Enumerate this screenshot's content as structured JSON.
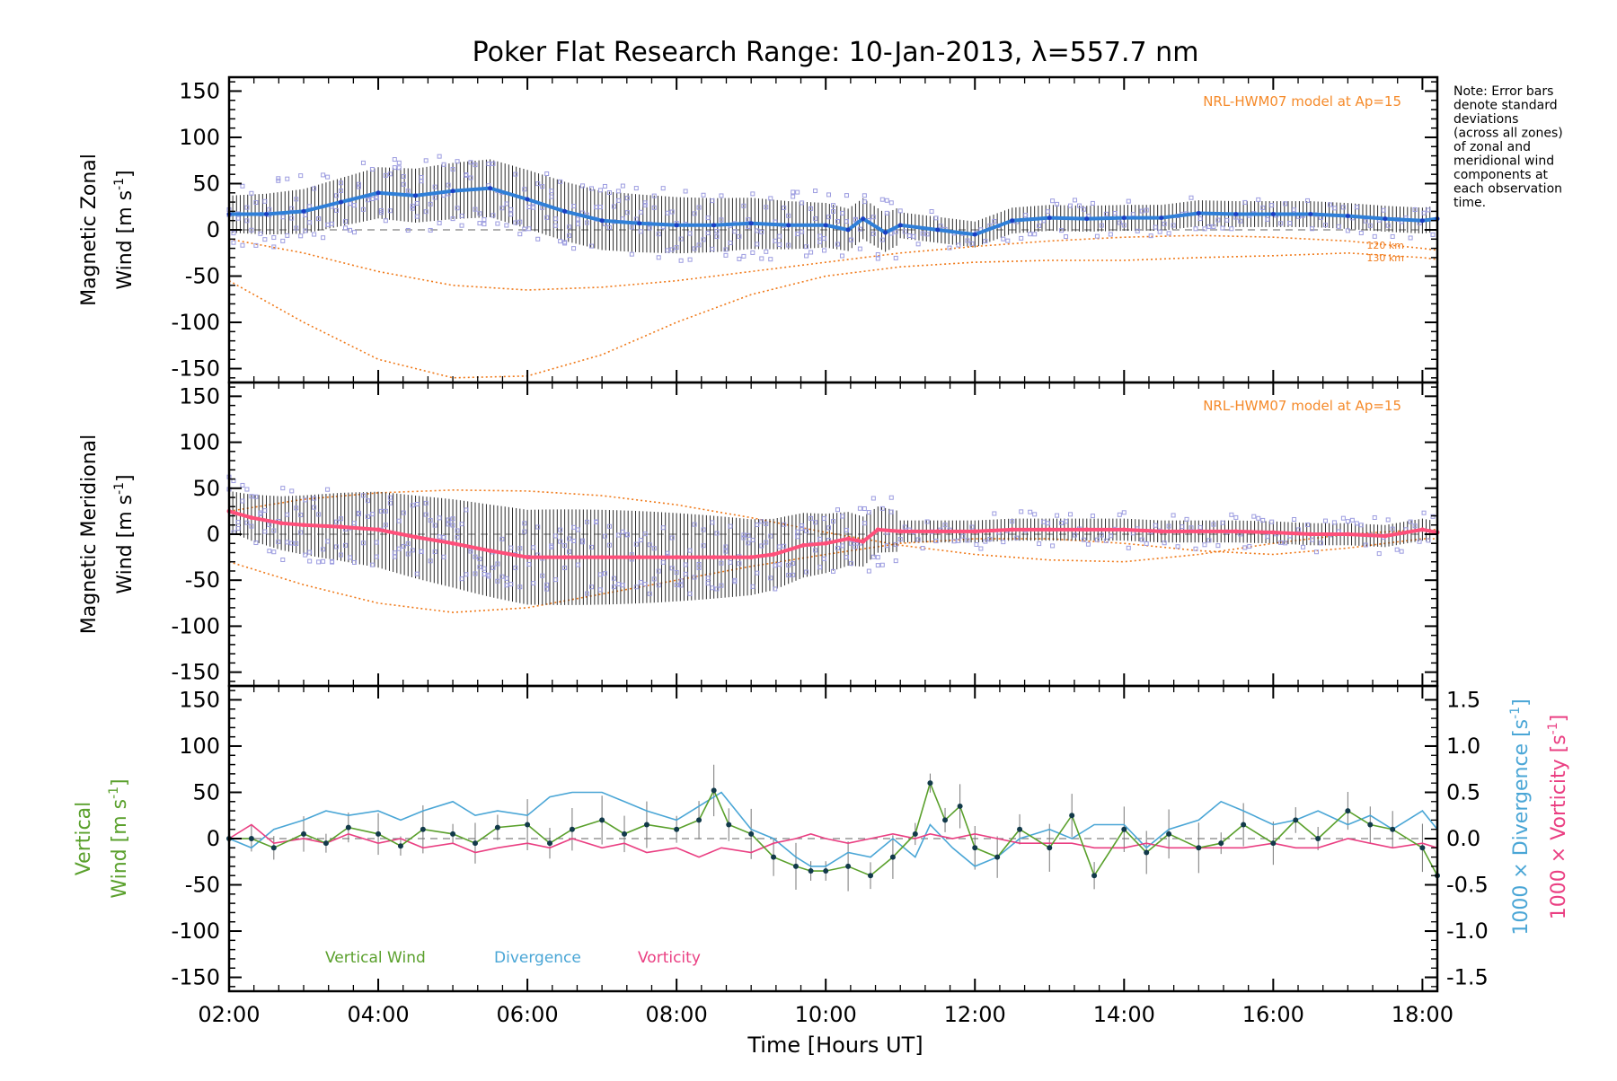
{
  "title": "Poker Flat Research Range: 10-Jan-2013, λ=557.7 nm",
  "note_lines": [
    "Note: Error bars",
    "denote standard",
    "deviations",
    "(across all zones)",
    "of zonal and",
    "meridional wind",
    "components at",
    "each observation",
    "time."
  ],
  "colors": {
    "axis": "#000000",
    "zonal": "#2f7fd8",
    "zonal_dark": "#1a3fc4",
    "meridional": "#ff4f7a",
    "vertical": "#5aa02c",
    "divergence": "#4aa6d6",
    "vorticity": "#ea3f82",
    "model": "#f07a1a",
    "scatter": "#9c9ce0",
    "errorbar": "#2b2b2b",
    "dashed": "#808080",
    "model_label": "#f58a2a"
  },
  "x_axis": {
    "label": "Time [Hours UT]",
    "range": [
      2.0,
      18.2
    ],
    "ticks": [
      {
        "v": 2,
        "label": "02:00"
      },
      {
        "v": 4,
        "label": "04:00"
      },
      {
        "v": 6,
        "label": "06:00"
      },
      {
        "v": 8,
        "label": "08:00"
      },
      {
        "v": 10,
        "label": "10:00"
      },
      {
        "v": 12,
        "label": "12:00"
      },
      {
        "v": 14,
        "label": "14:00"
      },
      {
        "v": 16,
        "label": "16:00"
      },
      {
        "v": 18,
        "label": "18:00"
      }
    ]
  },
  "panels": {
    "zonal": {
      "ylabel_line1": "Magnetic Zonal",
      "ylabel_line2": "Wind [m s",
      "ylabel_sup": "-1",
      "ylabel_close": "]",
      "model_label": "NRL-HWM07 model at Ap=15",
      "alt_labels": [
        "120 km",
        "130 km"
      ]
    },
    "meridional": {
      "ylabel_line1": "Magnetic Meridional",
      "ylabel_line2": "Wind [m s",
      "ylabel_sup": "-1",
      "ylabel_close": "]",
      "model_label": "NRL-HWM07 model at Ap=15"
    },
    "vertical": {
      "ylabel_line1": "Vertical",
      "ylabel_line2": "Wind [m s",
      "ylabel_sup": "-1",
      "ylabel_close": "]",
      "right_label_div": "1000 × Divergence [s",
      "right_label_vor": "1000 × Vorticity [s",
      "right_sup": "-1",
      "right_close": "]",
      "legend": [
        "Vertical Wind",
        "Divergence",
        "Vorticity"
      ]
    }
  },
  "chart_data": [
    {
      "type": "line",
      "title": "Magnetic Zonal Wind",
      "ylabel": "Magnetic Zonal Wind [m s-1]",
      "ylim": [
        -165,
        165
      ],
      "yticks": [
        -150,
        -100,
        -50,
        0,
        50,
        100,
        150
      ],
      "series": [
        {
          "name": "Mean zonal wind",
          "x": [
            2.0,
            2.5,
            3.0,
            3.5,
            4.0,
            4.5,
            5.0,
            5.5,
            6.0,
            6.5,
            7.0,
            7.5,
            8.0,
            8.5,
            9.0,
            9.5,
            10.0,
            10.3,
            10.5,
            10.8,
            11.0,
            11.5,
            12.0,
            12.5,
            13.0,
            13.5,
            14.0,
            14.5,
            15.0,
            15.5,
            16.0,
            16.5,
            17.0,
            17.5,
            18.0,
            18.2
          ],
          "y": [
            17,
            17,
            20,
            30,
            40,
            37,
            42,
            45,
            33,
            20,
            10,
            7,
            5,
            5,
            7,
            5,
            5,
            0,
            12,
            -3,
            5,
            0,
            -5,
            10,
            13,
            12,
            13,
            13,
            18,
            17,
            17,
            17,
            15,
            12,
            10,
            12
          ]
        },
        {
          "name": "HWM07 120 km",
          "x": [
            2,
            3,
            4,
            5,
            6,
            7,
            8,
            9,
            10,
            11,
            12,
            13,
            14,
            15,
            16,
            17,
            18,
            18.2
          ],
          "y": [
            -10,
            -25,
            -45,
            -60,
            -65,
            -62,
            -55,
            -45,
            -35,
            -25,
            -18,
            -12,
            -8,
            -6,
            -8,
            -12,
            -20,
            -22
          ]
        },
        {
          "name": "HWM07 130 km",
          "x": [
            2,
            3,
            4,
            5,
            6,
            7,
            8,
            9,
            10,
            11,
            12,
            13,
            14,
            15,
            16,
            17,
            18,
            18.2
          ],
          "y": [
            -55,
            -100,
            -140,
            -160,
            -158,
            -135,
            -100,
            -70,
            -50,
            -40,
            -35,
            -33,
            -33,
            -30,
            -28,
            -25,
            -30,
            -32
          ]
        }
      ]
    },
    {
      "type": "line",
      "title": "Magnetic Meridional Wind",
      "ylabel": "Magnetic Meridional Wind [m s-1]",
      "ylim": [
        -165,
        165
      ],
      "yticks": [
        -150,
        -100,
        -50,
        0,
        50,
        100,
        150
      ],
      "series": [
        {
          "name": "Mean meridional wind",
          "x": [
            2.0,
            2.3,
            2.7,
            3.0,
            3.5,
            4.0,
            4.5,
            5.0,
            5.5,
            6.0,
            6.5,
            7.0,
            7.5,
            8.0,
            8.5,
            9.0,
            9.3,
            9.7,
            10.0,
            10.3,
            10.5,
            10.7,
            11.0,
            11.5,
            12.0,
            12.5,
            13.0,
            13.5,
            14.0,
            14.5,
            15.0,
            15.5,
            16.0,
            16.5,
            17.0,
            17.5,
            18.0,
            18.2
          ],
          "y": [
            25,
            18,
            12,
            10,
            8,
            5,
            -3,
            -10,
            -18,
            -25,
            -25,
            -25,
            -25,
            -25,
            -25,
            -25,
            -22,
            -12,
            -10,
            -5,
            -8,
            5,
            3,
            3,
            3,
            5,
            5,
            5,
            5,
            3,
            3,
            3,
            2,
            0,
            0,
            -2,
            5,
            2
          ]
        },
        {
          "name": "HWM07 120 km",
          "x": [
            2,
            3,
            4,
            5,
            6,
            7,
            8,
            9,
            10,
            11,
            12,
            13,
            14,
            15,
            16,
            17,
            18,
            18.2
          ],
          "y": [
            25,
            38,
            45,
            48,
            47,
            42,
            32,
            18,
            2,
            -12,
            -22,
            -28,
            -30,
            -22,
            -10,
            0,
            5,
            5
          ]
        },
        {
          "name": "HWM07 130 km",
          "x": [
            2,
            3,
            4,
            5,
            6,
            7,
            8,
            9,
            10,
            11,
            12,
            13,
            14,
            15,
            16,
            17,
            18,
            18.2
          ],
          "y": [
            -30,
            -55,
            -75,
            -85,
            -80,
            -65,
            -50,
            -35,
            -22,
            -10,
            -5,
            -5,
            -10,
            -18,
            -22,
            -15,
            -5,
            -5
          ]
        }
      ]
    },
    {
      "type": "line",
      "title": "Vertical Wind, Divergence, Vorticity",
      "ylabel": "Vertical Wind [m s-1]",
      "ylim": [
        -165,
        165
      ],
      "yticks": [
        -150,
        -100,
        -50,
        0,
        50,
        100,
        150
      ],
      "y2label": "1000 × Divergence [s-1] / 1000 × Vorticity [s-1]",
      "y2lim": [
        -1.65,
        1.65
      ],
      "y2ticks": [
        -1.5,
        -1.0,
        -0.5,
        0.0,
        0.5,
        1.0,
        1.5
      ],
      "series": [
        {
          "name": "Vertical Wind",
          "axis": "left",
          "x": [
            2.0,
            2.3,
            2.6,
            3.0,
            3.3,
            3.6,
            4.0,
            4.3,
            4.6,
            5.0,
            5.3,
            5.6,
            6.0,
            6.3,
            6.6,
            7.0,
            7.3,
            7.6,
            8.0,
            8.3,
            8.5,
            8.7,
            9.0,
            9.3,
            9.6,
            9.8,
            10.0,
            10.3,
            10.6,
            10.9,
            11.2,
            11.4,
            11.6,
            11.8,
            12.0,
            12.3,
            12.6,
            13.0,
            13.3,
            13.6,
            14.0,
            14.3,
            14.6,
            15.0,
            15.3,
            15.6,
            16.0,
            16.3,
            16.6,
            17.0,
            17.3,
            17.6,
            18.0,
            18.2
          ],
          "y": [
            0,
            0,
            -10,
            5,
            -5,
            12,
            5,
            -8,
            10,
            5,
            -5,
            12,
            15,
            -5,
            10,
            20,
            5,
            15,
            10,
            20,
            52,
            15,
            5,
            -20,
            -30,
            -35,
            -35,
            -30,
            -40,
            -20,
            5,
            60,
            20,
            35,
            -10,
            -20,
            10,
            -10,
            25,
            -40,
            10,
            -15,
            5,
            -10,
            -5,
            15,
            -5,
            20,
            0,
            30,
            15,
            10,
            -10,
            -40
          ]
        },
        {
          "name": "Divergence",
          "axis": "right",
          "x": [
            2.0,
            2.3,
            2.6,
            3.0,
            3.3,
            3.6,
            4.0,
            4.3,
            4.6,
            5.0,
            5.3,
            5.6,
            6.0,
            6.3,
            6.6,
            7.0,
            7.3,
            7.6,
            8.0,
            8.3,
            8.6,
            9.0,
            9.3,
            9.6,
            9.8,
            10.0,
            10.3,
            10.6,
            10.9,
            11.2,
            11.4,
            11.7,
            12.0,
            12.3,
            12.6,
            13.0,
            13.3,
            13.6,
            14.0,
            14.3,
            14.6,
            15.0,
            15.3,
            15.6,
            16.0,
            16.3,
            16.6,
            17.0,
            17.3,
            17.6,
            18.0,
            18.2
          ],
          "y": [
            0.0,
            -0.1,
            0.1,
            0.2,
            0.3,
            0.25,
            0.3,
            0.2,
            0.3,
            0.4,
            0.25,
            0.3,
            0.25,
            0.45,
            0.5,
            0.5,
            0.4,
            0.3,
            0.2,
            0.35,
            0.5,
            0.1,
            0.0,
            -0.2,
            -0.3,
            -0.3,
            -0.15,
            -0.2,
            0.0,
            -0.2,
            0.15,
            -0.1,
            -0.3,
            -0.2,
            0.0,
            0.1,
            0.0,
            0.15,
            0.15,
            -0.1,
            0.1,
            0.2,
            0.4,
            0.3,
            0.15,
            0.2,
            0.3,
            0.15,
            0.25,
            0.1,
            0.3,
            0.1
          ]
        },
        {
          "name": "Vorticity",
          "axis": "right",
          "x": [
            2.0,
            2.3,
            2.6,
            3.0,
            3.3,
            3.6,
            4.0,
            4.3,
            4.6,
            5.0,
            5.3,
            5.6,
            6.0,
            6.3,
            6.6,
            7.0,
            7.3,
            7.6,
            8.0,
            8.3,
            8.6,
            9.0,
            9.3,
            9.6,
            9.8,
            10.0,
            10.3,
            10.6,
            10.9,
            11.2,
            11.4,
            11.7,
            12.0,
            12.3,
            12.6,
            13.0,
            13.3,
            13.6,
            14.0,
            14.3,
            14.6,
            15.0,
            15.3,
            15.6,
            16.0,
            16.3,
            16.6,
            17.0,
            17.3,
            17.6,
            18.0,
            18.2
          ],
          "y": [
            0.0,
            0.15,
            -0.05,
            0.0,
            -0.05,
            0.05,
            -0.05,
            0.0,
            -0.1,
            -0.05,
            -0.15,
            -0.1,
            -0.05,
            -0.1,
            0.0,
            -0.1,
            -0.05,
            -0.15,
            -0.1,
            -0.2,
            -0.1,
            -0.15,
            -0.05,
            0.0,
            0.05,
            0.0,
            -0.05,
            0.0,
            0.05,
            0.0,
            0.05,
            0.0,
            0.05,
            0.0,
            -0.05,
            -0.05,
            -0.05,
            -0.1,
            -0.1,
            -0.05,
            -0.1,
            -0.1,
            -0.1,
            -0.1,
            -0.05,
            -0.1,
            -0.1,
            0.0,
            -0.05,
            -0.1,
            -0.05,
            -0.1
          ]
        }
      ]
    }
  ]
}
